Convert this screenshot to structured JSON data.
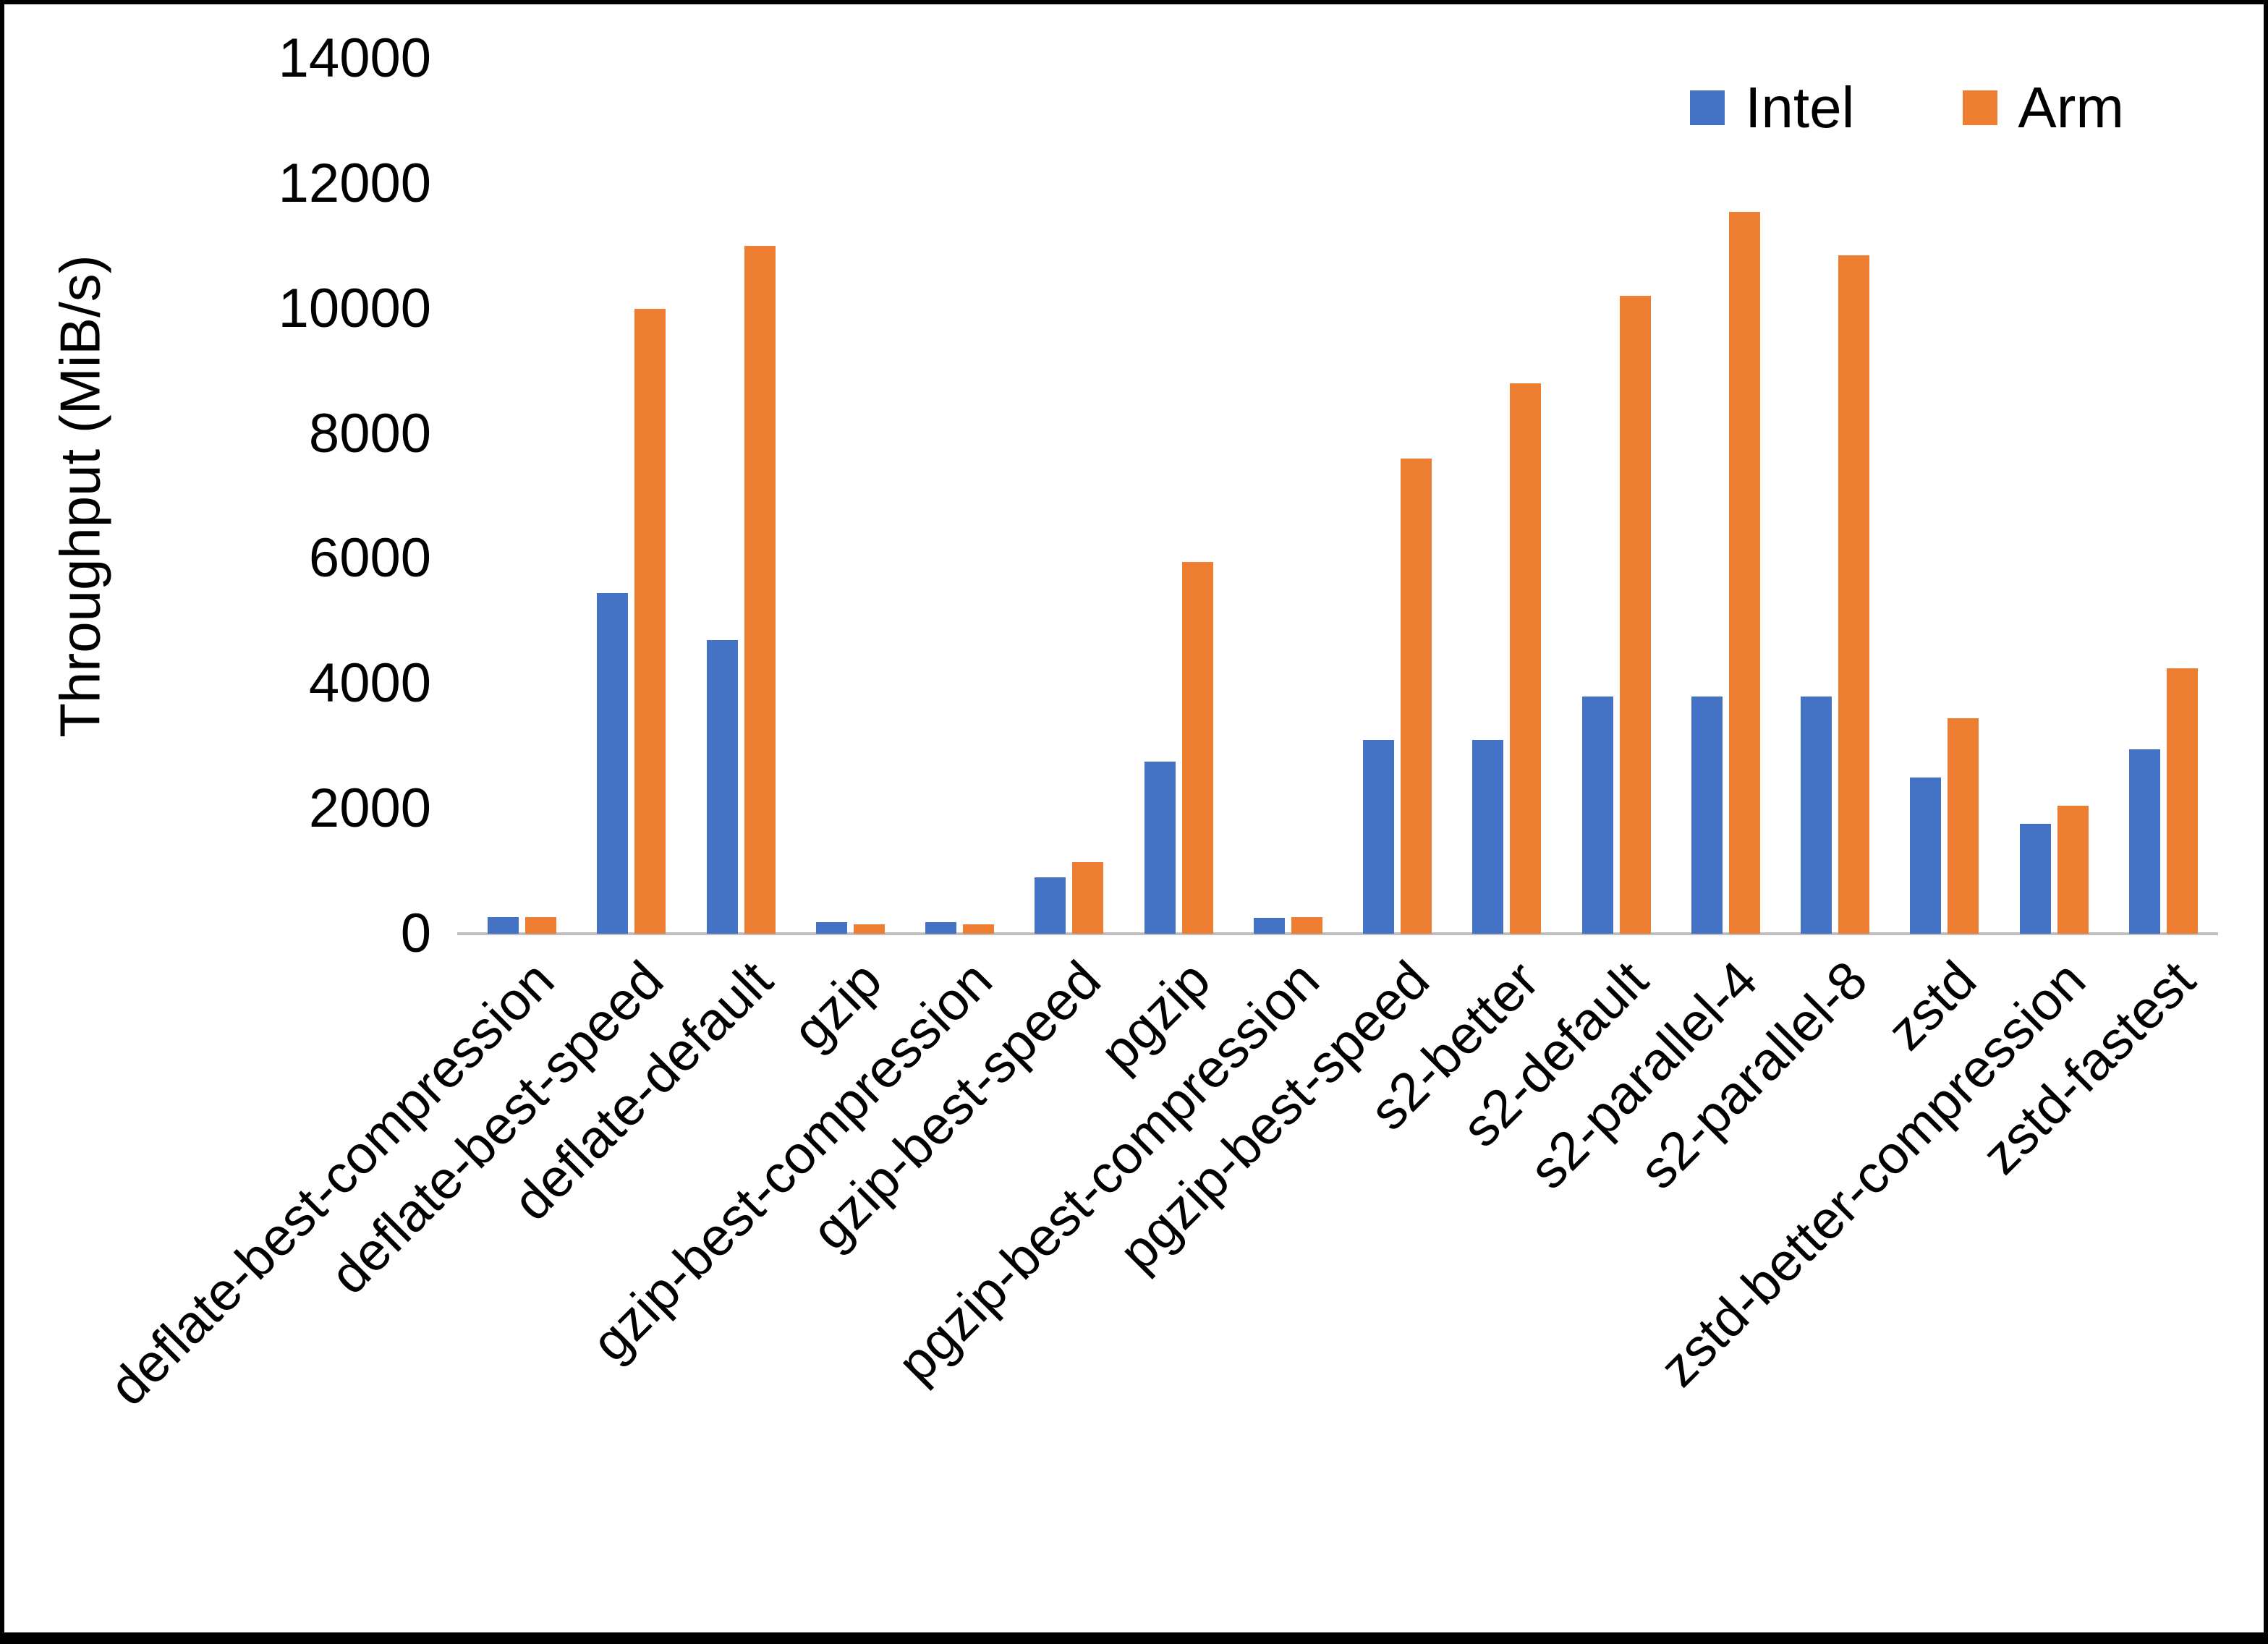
{
  "chart_data": {
    "type": "bar",
    "ylabel": "Throughput (MiB/s)",
    "ylim": [
      0,
      14000
    ],
    "yticks": [
      0,
      2000,
      4000,
      6000,
      8000,
      10000,
      12000,
      14000
    ],
    "grid": false,
    "legend_position": "top-right",
    "categories": [
      "deflate-best-compression",
      "deflate-best-speed",
      "deflate-default",
      "gzip",
      "gzip-best-compression",
      "gzip-best-speed",
      "pgzip",
      "pgzip-best-compression",
      "pgzip-best-speed",
      "s2-better",
      "s2-default",
      "s2-parallel-4",
      "s2-parallel-8",
      "zstd",
      "zstd-better-compression",
      "zstd-fastest"
    ],
    "series": [
      {
        "name": "Intel",
        "color": "#4472C4",
        "values": [
          270,
          5450,
          4700,
          180,
          180,
          900,
          2750,
          260,
          3100,
          3100,
          3800,
          3800,
          3800,
          2500,
          1760,
          2950
        ]
      },
      {
        "name": "Arm",
        "color": "#ED7D31",
        "values": [
          270,
          10000,
          11000,
          150,
          150,
          1150,
          5950,
          270,
          7600,
          8800,
          10200,
          11550,
          10850,
          3450,
          2050,
          4250
        ]
      }
    ]
  },
  "legend": {
    "intel_label": "Intel",
    "arm_label": "Arm"
  },
  "axis": {
    "y_title": "Throughput (MiB/s)"
  }
}
